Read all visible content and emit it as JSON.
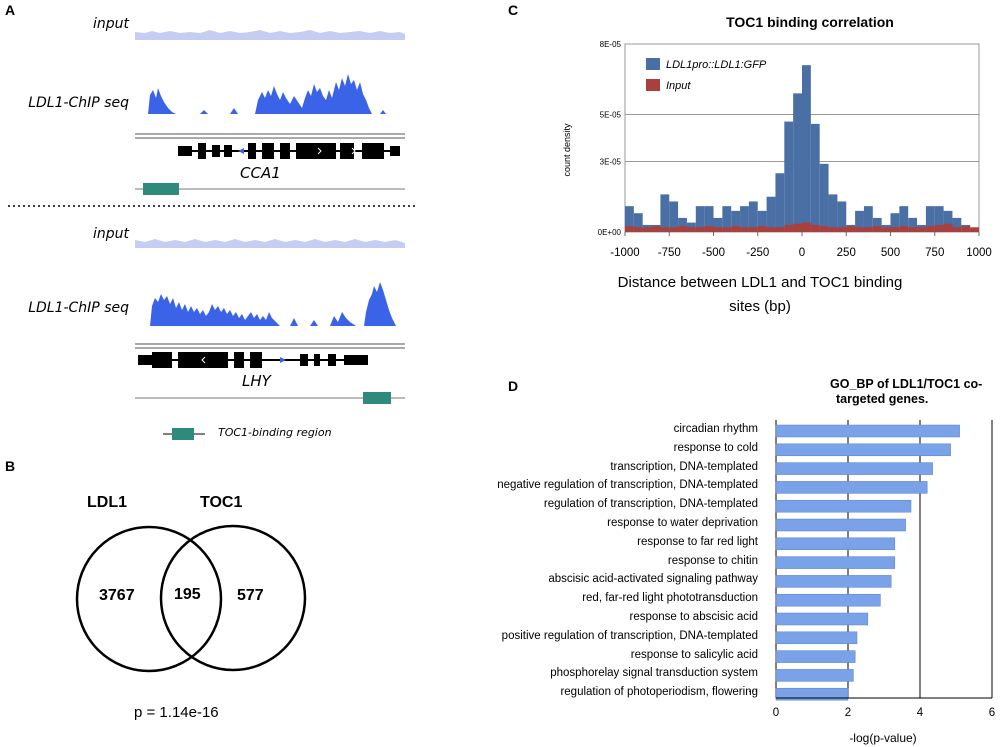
{
  "panelA": {
    "letter": "A",
    "tracks": [
      {
        "input_label": "input",
        "chip_label": "LDL1-ChIP seq",
        "gene": "CCA1"
      },
      {
        "input_label": "input",
        "chip_label": "LDL1-ChIP seq",
        "gene": "LHY"
      }
    ],
    "legend": "TOC1-binding region"
  },
  "panelB": {
    "letter": "B",
    "set1": "LDL1",
    "set2": "TOC1",
    "only1": "3767",
    "overlap": "195",
    "only2": "577",
    "pvalue": "p = 1.14e-16"
  },
  "panelC": {
    "letter": "C",
    "legend1": "LDL1pro::LDL1:GFP",
    "legend2": "Input",
    "xlabel_line1": "Distance between LDL1 and TOC1 binding",
    "xlabel_line2": "sites (bp)"
  },
  "panelD": {
    "letter": "D",
    "title_line1": "GO_BP of LDL1/TOC1 co-",
    "title_line2": "targeted genes.",
    "ellipsis": "..."
  },
  "chart_data": [
    {
      "type": "bar",
      "title": "TOC1 binding correlation",
      "xlabel": "Distance between LDL1 and TOC1 binding sites (bp)",
      "ylabel": "count density",
      "xlim": [
        -1000,
        1000
      ],
      "ylim": [
        0,
        8e-05
      ],
      "xticks": [
        "-1000",
        "-750",
        "-500",
        "-250",
        "0",
        "250",
        "500",
        "750",
        "1000"
      ],
      "yticks": [
        "0E+00",
        "3E-05",
        "5E-05",
        "8E-05"
      ],
      "bin_width": 50,
      "bin_start": -1000,
      "colors": {
        "ldl1": "#4a6fa5",
        "input": "#a9403e"
      },
      "series": [
        {
          "name": "LDL1pro::LDL1:GFP",
          "values": [
            1.1e-05,
            8e-06,
            3e-06,
            3e-06,
            1.6e-05,
            1.3e-05,
            6e-06,
            4e-06,
            1.1e-05,
            1.1e-05,
            6e-06,
            1.1e-05,
            9e-06,
            1.1e-05,
            1.3e-05,
            9e-06,
            1.5e-05,
            2.5e-05,
            4.7e-05,
            5.9e-05,
            7.1e-05,
            4.6e-05,
            2.9e-05,
            1.6e-05,
            1.3e-05,
            3e-06,
            9e-06,
            1.1e-05,
            6e-06,
            3e-06,
            8e-06,
            1.1e-05,
            6e-06,
            3e-06,
            1.1e-05,
            1.1e-05,
            9e-06,
            6e-06,
            3e-06,
            1e-06
          ]
        },
        {
          "name": "Input",
          "values": [
            2.5e-06,
            2e-06,
            2e-06,
            2.5e-06,
            2e-06,
            2e-06,
            2.5e-06,
            2e-06,
            2e-06,
            2.5e-06,
            2e-06,
            2e-06,
            2.5e-06,
            2e-06,
            2e-06,
            2.5e-06,
            2e-06,
            2e-06,
            3e-06,
            3.5e-06,
            4e-06,
            3e-06,
            2.5e-06,
            2e-06,
            2e-06,
            2.5e-06,
            2e-06,
            2e-06,
            2.5e-06,
            2e-06,
            2e-06,
            2.5e-06,
            2e-06,
            2e-06,
            2.5e-06,
            3e-06,
            3.5e-06,
            2e-06,
            2.5e-06,
            2e-06
          ]
        }
      ]
    },
    {
      "type": "bar",
      "orientation": "horizontal",
      "title": "GO_BP of LDL1/TOC1 co-targeted genes.",
      "xlabel": "-log(p-value)",
      "xlim": [
        0,
        6
      ],
      "xticks": [
        "0",
        "2",
        "4",
        "6"
      ],
      "color": "#7aa2e8",
      "categories": [
        "circadian rhythm",
        "response to cold",
        "transcription, DNA-templated",
        "negative regulation of transcription, DNA-templated",
        "regulation of transcription, DNA-templated",
        "response to water deprivation",
        "response to far red light",
        "response to chitin",
        "abscisic acid-activated signaling pathway",
        "red, far-red light phototransduction",
        "response to abscisic acid",
        "positive regulation of transcription, DNA-templated",
        "response to salicylic acid",
        "phosphorelay signal transduction system",
        "regulation of photoperiodism, flowering"
      ],
      "values": [
        5.1,
        4.85,
        4.35,
        4.2,
        3.75,
        3.6,
        3.3,
        3.3,
        3.2,
        2.9,
        2.55,
        2.25,
        2.2,
        2.15,
        2.0
      ]
    }
  ]
}
